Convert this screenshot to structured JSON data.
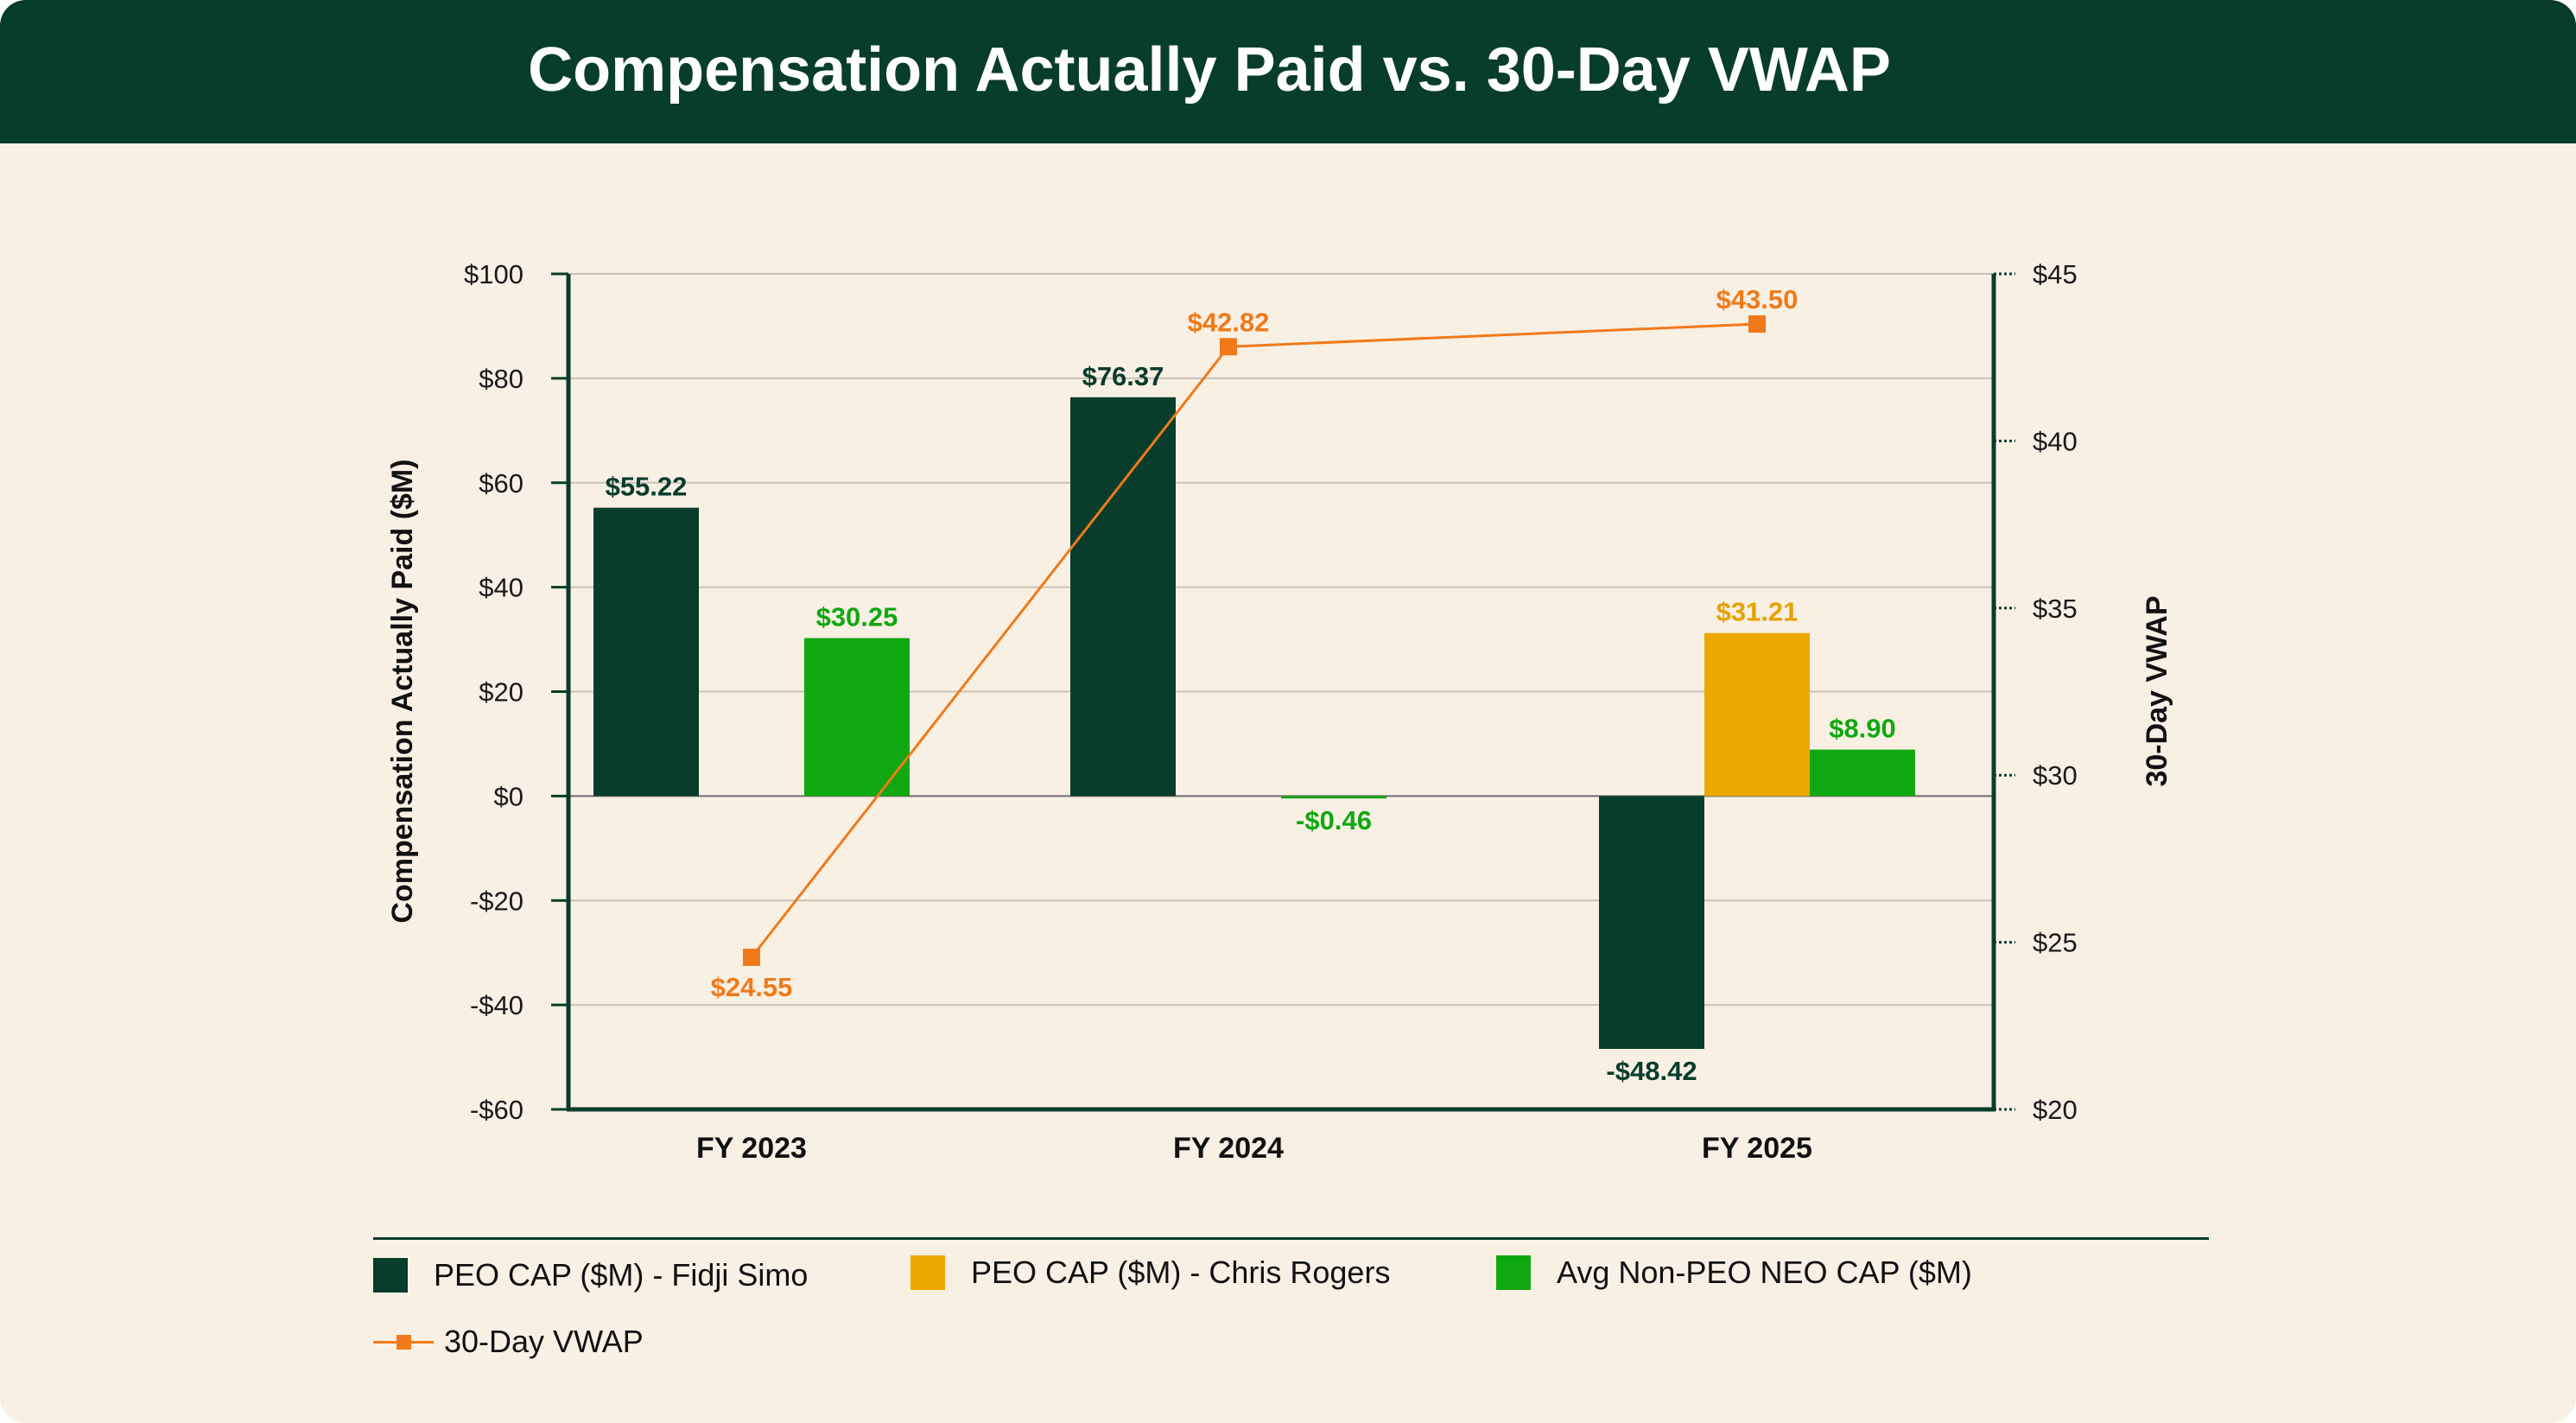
{
  "title": "Compensation Actually Paid vs. 30-Day VWAP",
  "chart_data": {
    "type": "bar",
    "categories": [
      "FY 2023",
      "FY 2024",
      "FY 2025"
    ],
    "series": [
      {
        "name": "PEO CAP ($M) - Fidji Simo",
        "color": "#083d2b",
        "values": [
          55.22,
          76.37,
          -48.42
        ],
        "labels": [
          "$55.22",
          "$76.37",
          "-$48.42"
        ]
      },
      {
        "name": "PEO CAP ($M) - Chris Rogers",
        "color": "#eba900",
        "values": [
          null,
          null,
          31.21
        ],
        "labels": [
          null,
          null,
          "$31.21"
        ],
        "label_color": "#e7a100"
      },
      {
        "name": "Avg Non-PEO NEO CAP ($M)",
        "color": "#10a810",
        "values": [
          30.25,
          -0.46,
          8.9
        ],
        "labels": [
          "$30.25",
          "-$0.46",
          "$8.90"
        ]
      }
    ],
    "line_series": {
      "name": "30-Day VWAP",
      "type": "line",
      "axis": "secondary",
      "color": "#f07a1a",
      "values": [
        24.55,
        42.82,
        43.5
      ],
      "labels": [
        "$24.55",
        "$42.82",
        "$43.50"
      ]
    },
    "ylabel": "Compensation Actually Paid ($M)",
    "y2label": "30-Day VWAP",
    "ylim": [
      -60,
      100
    ],
    "y2lim": [
      20,
      45
    ],
    "yticks": [
      -60,
      -40,
      -20,
      0,
      20,
      40,
      60,
      80,
      100
    ],
    "yticklabels": [
      "-$60",
      "-$40",
      "-$20",
      "$0",
      "$20",
      "$40",
      "$60",
      "$80",
      "$100"
    ],
    "y2ticks": [
      20,
      25,
      30,
      35,
      40,
      45
    ],
    "y2ticklabels": [
      "$20",
      "$25",
      "$30",
      "$35",
      "$40",
      "$45"
    ],
    "grid": true,
    "legend": "bottom"
  }
}
